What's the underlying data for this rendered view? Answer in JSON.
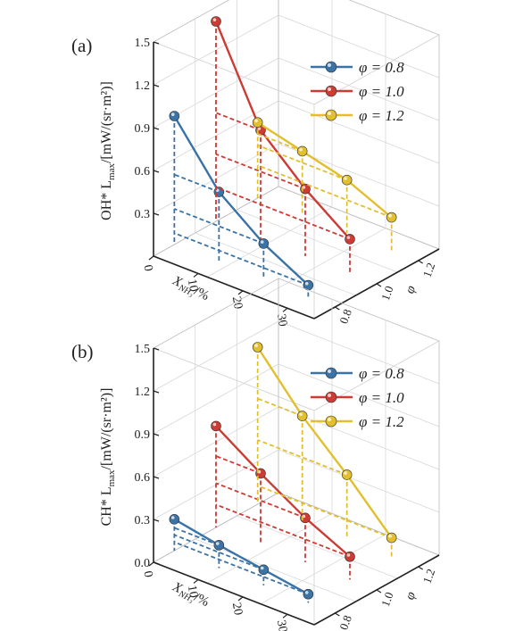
{
  "chart_data": [
    {
      "type": "line",
      "panel_label": "(a)",
      "zlabel": "OH* L",
      "zlabel_sub": "max",
      "zlabel_unit": "/[mW/(sr·m²)]",
      "xlabel": "X",
      "xlabel_sub": "NH₃",
      "xlabel_unit": "/%",
      "ylabel": "φ",
      "zlim": [
        0,
        1.5
      ],
      "z_ticks": [
        "0.3",
        "0.6",
        "0.9",
        "1.2",
        "1.5"
      ],
      "x_ticks": [
        "0",
        "10",
        "20",
        "30"
      ],
      "y_ticks": [
        "0.8",
        "1.0",
        "1.2"
      ],
      "legend_placement": "top-right",
      "grid": true,
      "series": [
        {
          "name": "φ = 0.8",
          "phi": 0.8,
          "color": "#3a73a8",
          "x": [
            0,
            10,
            20,
            30
          ],
          "z": [
            0.9,
            0.49,
            0.25,
            0.08
          ]
        },
        {
          "name": "φ = 1.0",
          "phi": 1.0,
          "color": "#cc3b34",
          "x": [
            0,
            10,
            20,
            30
          ],
          "z": [
            1.4,
            0.76,
            0.47,
            0.24
          ]
        },
        {
          "name": "φ = 1.2",
          "phi": 1.2,
          "color": "#e3bf2e",
          "x": [
            0,
            10,
            20,
            30
          ],
          "z": [
            0.53,
            0.45,
            0.37,
            0.23
          ]
        }
      ]
    },
    {
      "type": "line",
      "panel_label": "(b)",
      "zlabel": "CH* L",
      "zlabel_sub": "max",
      "zlabel_unit": "/[mW/(sr·m²)]",
      "xlabel": "X",
      "xlabel_sub": "NH₃",
      "xlabel_unit": "/%",
      "ylabel": "φ",
      "zlim": [
        0,
        1.5
      ],
      "z_ticks": [
        "0.0",
        "0.3",
        "0.6",
        "0.9",
        "1.2",
        "1.5"
      ],
      "x_ticks": [
        "0",
        "10",
        "20",
        "30"
      ],
      "y_ticks": [
        "0.8",
        "1.0",
        "1.2"
      ],
      "legend_placement": "top-right",
      "grid": true,
      "series": [
        {
          "name": "φ = 0.8",
          "phi": 0.8,
          "color": "#3a73a8",
          "x": [
            0,
            10,
            20,
            30
          ],
          "z": [
            0.22,
            0.16,
            0.11,
            0.06
          ]
        },
        {
          "name": "φ = 1.0",
          "phi": 1.0,
          "color": "#cc3b34",
          "x": [
            0,
            10,
            20,
            30
          ],
          "z": [
            0.71,
            0.5,
            0.31,
            0.16
          ]
        },
        {
          "name": "φ = 1.2",
          "phi": 1.2,
          "color": "#e3bf2e",
          "x": [
            0,
            10,
            20,
            30
          ],
          "z": [
            1.1,
            0.74,
            0.45,
            0.13
          ]
        }
      ]
    }
  ]
}
